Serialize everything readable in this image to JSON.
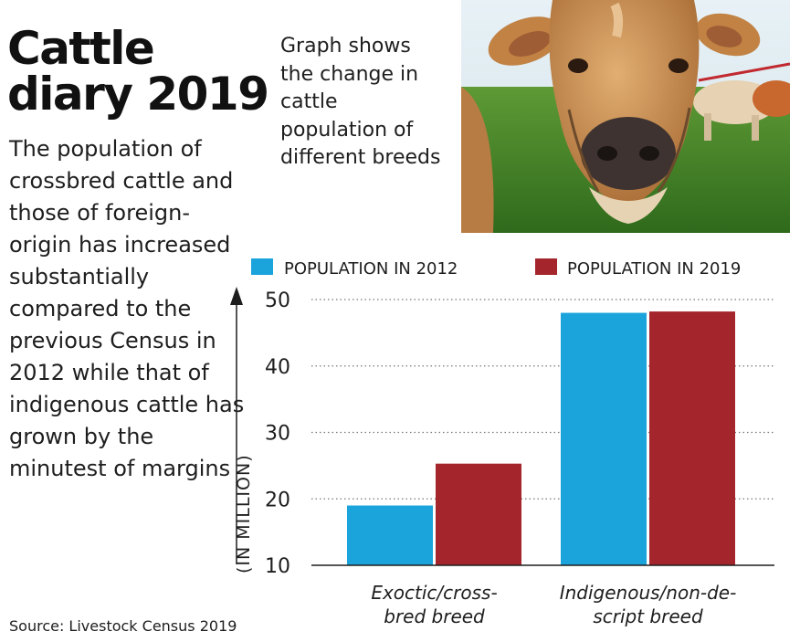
{
  "headline": "Cattle diary 2019",
  "lede": "The population of crossbred cattle and those of foreign-origin has increased substantially compared to the previous Census in 2012 while that of indigenous cattle has grown by the minutest of margins",
  "graph_note": "Graph shows the change in cattle population of different breeds",
  "source": "Source: Livestock Census 2019",
  "photo": {
    "icon": "cow-photo"
  },
  "colors": {
    "series_2012": "#1ba3dc",
    "series_2019": "#a4262c",
    "grid": "#777777"
  },
  "chart_data": {
    "type": "bar",
    "ylabel": "(IN MILLION)",
    "ylim": [
      10,
      50
    ],
    "yticks": [
      10,
      20,
      30,
      40,
      50
    ],
    "grid": true,
    "legend_position": "top",
    "categories": [
      [
        "Exoctic/cross-",
        "bred breed"
      ],
      [
        "Indigenous/non-de-",
        "script breed"
      ]
    ],
    "series": [
      {
        "name": "POPULATION IN 2012",
        "values": [
          19.0,
          48.0
        ]
      },
      {
        "name": "POPULATION IN 2019",
        "values": [
          25.3,
          48.2
        ]
      }
    ]
  }
}
